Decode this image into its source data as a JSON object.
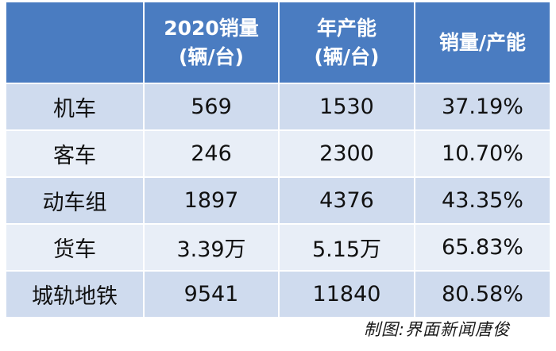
{
  "table": {
    "headers": [
      {
        "line1": "",
        "line2": ""
      },
      {
        "line1": "2020销量",
        "line2": "(辆/台)"
      },
      {
        "line1": "年产能",
        "line2": "(辆/台)"
      },
      {
        "line1": "销量/产能",
        "line2": ""
      }
    ],
    "rows": [
      {
        "category": "机车",
        "sales_2020": "569",
        "annual_capacity": "1530",
        "ratio": "37.19%"
      },
      {
        "category": "客车",
        "sales_2020": "246",
        "annual_capacity": "2300",
        "ratio": "10.70%"
      },
      {
        "category": "动车组",
        "sales_2020": "1897",
        "annual_capacity": "4376",
        "ratio": "43.35%"
      },
      {
        "category": "货车",
        "sales_2020": "3.39万",
        "annual_capacity": "5.15万",
        "ratio": "65.83%"
      },
      {
        "category": "城轨地铁",
        "sales_2020": "9541",
        "annual_capacity": "11840",
        "ratio": "80.58%"
      }
    ]
  },
  "caption": "制图:界面新闻唐俊",
  "colors": {
    "header_bg": "#4a7cc1",
    "row_dark": "#cfdbee",
    "row_light": "#e8eef7"
  }
}
